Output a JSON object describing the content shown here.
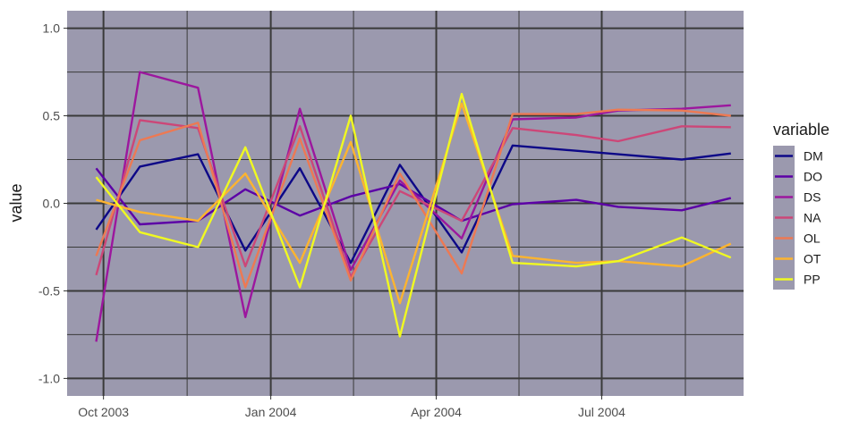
{
  "chart_data": {
    "type": "line",
    "ylabel": "value",
    "xlabel": "",
    "ylim": [
      -1.1,
      1.1
    ],
    "y_ticks": [
      -1.0,
      -0.5,
      0.0,
      0.5,
      1.0
    ],
    "y_tick_labels": [
      "-1.0",
      "-0.5",
      "0.0",
      "0.5",
      "1.0"
    ],
    "x_tick_labels": [
      "Oct 2003",
      "Jan 2004",
      "Apr 2004",
      "Jul 2004"
    ],
    "x_ticks": [
      "2003-10-01",
      "2004-01-01",
      "2004-04-01",
      "2004-07-01"
    ],
    "xlim": [
      "2003-09-11",
      "2004-09-17"
    ],
    "x": [
      "2003-09-27",
      "2003-10-21",
      "2003-11-22",
      "2003-12-18",
      "2004-01-17",
      "2004-02-14",
      "2004-03-12",
      "2004-04-15",
      "2004-05-13",
      "2004-06-17",
      "2004-07-10",
      "2004-08-14",
      "2004-09-10"
    ],
    "panel_background": "#9b99ae",
    "grid": true,
    "grid_color": "#3a3a3a",
    "legend": {
      "title": "variable",
      "position": "right"
    },
    "series": [
      {
        "name": "DM",
        "color": "#0d0887",
        "values": [
          -0.15,
          0.21,
          0.28,
          -0.27,
          0.2,
          -0.34,
          0.22,
          -0.28,
          0.33,
          0.3,
          0.28,
          0.25,
          0.285
        ]
      },
      {
        "name": "DO",
        "color": "#5c01a6",
        "values": [
          0.2,
          -0.12,
          -0.1,
          0.08,
          -0.07,
          0.04,
          0.11,
          -0.1,
          -0.005,
          0.02,
          -0.02,
          -0.04,
          0.03
        ]
      },
      {
        "name": "DS",
        "color": "#9c179e",
        "values": [
          -0.79,
          0.75,
          0.66,
          -0.65,
          0.54,
          -0.38,
          0.13,
          -0.2,
          0.48,
          0.49,
          0.53,
          0.54,
          0.56
        ]
      },
      {
        "name": "NA",
        "color": "#cc4778",
        "values": [
          -0.41,
          0.475,
          0.43,
          -0.36,
          0.44,
          -0.42,
          0.07,
          -0.1,
          0.43,
          0.39,
          0.355,
          0.44,
          0.435
        ]
      },
      {
        "name": "OL",
        "color": "#ed7953",
        "values": [
          -0.3,
          0.36,
          0.46,
          -0.48,
          0.37,
          -0.44,
          0.17,
          -0.4,
          0.51,
          0.51,
          0.535,
          0.53,
          0.5
        ]
      },
      {
        "name": "OT",
        "color": "#fdb42f",
        "values": [
          0.02,
          -0.05,
          -0.1,
          0.17,
          -0.34,
          0.35,
          -0.57,
          0.57,
          -0.3,
          -0.34,
          -0.33,
          -0.36,
          -0.23
        ]
      },
      {
        "name": "PP",
        "color": "#f0f921",
        "values": [
          0.15,
          -0.165,
          -0.25,
          0.32,
          -0.48,
          0.5,
          -0.76,
          0.625,
          -0.34,
          -0.36,
          -0.33,
          -0.195,
          -0.31
        ]
      }
    ]
  }
}
